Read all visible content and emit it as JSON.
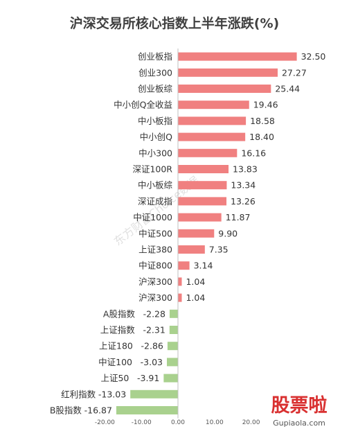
{
  "chart_data": {
    "type": "bar",
    "orientation": "horizontal",
    "title": "沪深交易所核心指数上半年涨跌(%)",
    "categories": [
      "创业板指",
      "创业300",
      "创业板综",
      "中小创Q全收益",
      "中小板指",
      "中小创Q",
      "中小300",
      "深证100R",
      "中小板综",
      "深证成指",
      "中证1000",
      "中证500",
      "上证380",
      "中证800",
      "沪深300",
      "沪深300",
      "A股指数",
      "上证指数",
      "上证180",
      "中证100",
      "上证50",
      "红利指数",
      "B股指数"
    ],
    "values": [
      32.5,
      27.27,
      25.44,
      19.46,
      18.58,
      18.4,
      16.16,
      13.83,
      13.34,
      13.26,
      11.87,
      9.9,
      7.35,
      3.14,
      1.04,
      1.04,
      -2.28,
      -2.31,
      -2.86,
      -3.03,
      -3.91,
      -13.03,
      -16.87
    ],
    "value_labels": [
      "32.50",
      "27.27",
      "25.44",
      "19.46",
      "18.58",
      "18.40",
      "16.16",
      "13.83",
      "13.34",
      "13.26",
      "11.87",
      "9.90",
      "7.35",
      "3.14",
      "1.04",
      "1.04",
      "-2.28",
      "-2.31",
      "-2.86",
      "-3.03",
      "-3.91",
      "-13.03",
      "-16.87"
    ],
    "xlim": [
      -20,
      30
    ],
    "xticks": [
      -20,
      -10,
      0,
      10,
      20
    ],
    "xtick_labels": [
      "-20.00",
      "-10.00",
      "0.00",
      "10.00",
      "20.00"
    ],
    "grid": false,
    "colors": {
      "positive": "#f08080",
      "negative": "#a9d18e"
    }
  },
  "watermark": "东方财富Choice数据",
  "logo": {
    "text": "股票啦",
    "url_text": "Gupiaola.com"
  }
}
